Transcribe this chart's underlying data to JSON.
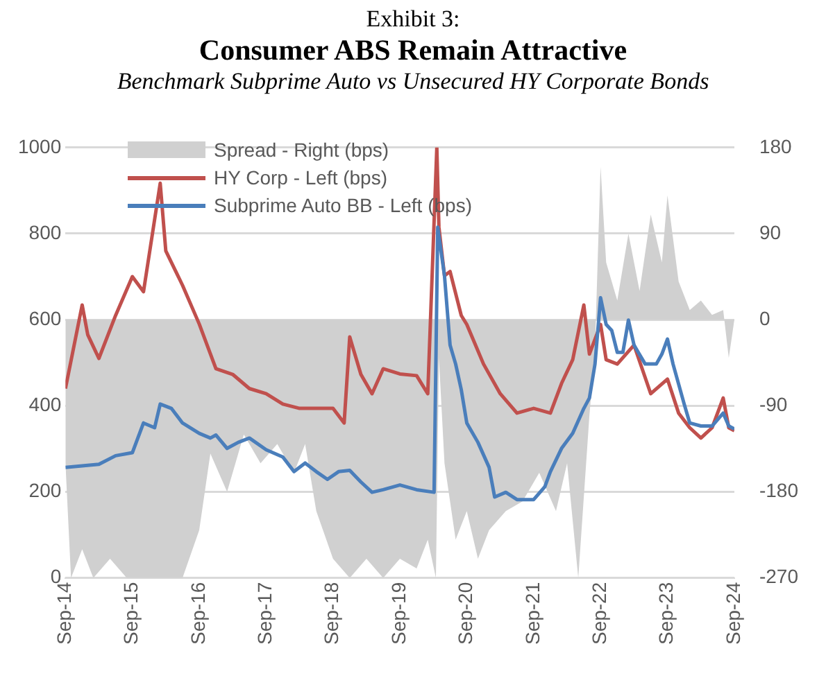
{
  "chart_data": {
    "type": "line",
    "title": "Consumer ABS Remain Attractive",
    "subtitle": "Benchmark Subprime Auto vs Unsecured HY Corporate Bonds",
    "annotations": [
      "Exhibit 3:"
    ],
    "xlim": [
      "2014-09",
      "2024-09"
    ],
    "xticks": [
      {
        "value": "2014-09",
        "label": "Sep-14"
      },
      {
        "value": "2015-09",
        "label": "Sep-15"
      },
      {
        "value": "2016-09",
        "label": "Sep-16"
      },
      {
        "value": "2017-09",
        "label": "Sep-17"
      },
      {
        "value": "2018-09",
        "label": "Sep-18"
      },
      {
        "value": "2019-09",
        "label": "Sep-19"
      },
      {
        "value": "2020-09",
        "label": "Sep-20"
      },
      {
        "value": "2021-09",
        "label": "Sep-21"
      },
      {
        "value": "2022-09",
        "label": "Sep-22"
      },
      {
        "value": "2023-09",
        "label": "Sep-23"
      },
      {
        "value": "2024-09",
        "label": "Sep-24"
      }
    ],
    "ylim": [
      0,
      1000
    ],
    "yticks": [
      0,
      200,
      400,
      600,
      800,
      1000
    ],
    "y2lim": [
      -270,
      180
    ],
    "y2ticks": [
      -270,
      -180,
      -90,
      0,
      90,
      180
    ],
    "grid": "y",
    "legend": "top left",
    "marker": "none",
    "series": [
      {
        "name": "Spread - Right (bps)",
        "type": "area",
        "axis": "y2",
        "color": "#d0d0d0",
        "x": [
          "2014-09",
          "2014-10",
          "2014-12",
          "2015-02",
          "2015-05",
          "2015-08",
          "2016-01",
          "2016-06",
          "2016-09",
          "2016-11",
          "2017-02",
          "2017-05",
          "2017-08",
          "2017-11",
          "2018-02",
          "2018-04",
          "2018-06",
          "2018-09",
          "2018-12",
          "2019-03",
          "2019-06",
          "2019-09",
          "2019-12",
          "2020-02",
          "2020-03-15",
          "2020-04",
          "2020-05",
          "2020-07",
          "2020-09",
          "2020-11",
          "2021-01",
          "2021-04",
          "2021-07",
          "2021-10",
          "2022-01",
          "2022-03",
          "2022-05",
          "2022-07",
          "2022-08",
          "2022-09",
          "2022-10",
          "2022-12",
          "2023-02",
          "2023-04",
          "2023-06",
          "2023-08",
          "2023-09",
          "2023-11",
          "2024-01",
          "2024-03",
          "2024-05",
          "2024-07",
          "2024-08",
          "2024-09"
        ],
        "values": [
          -150,
          -270,
          -240,
          -270,
          -250,
          -270,
          -270,
          -270,
          -220,
          -140,
          -180,
          -120,
          -150,
          -130,
          -160,
          -130,
          -200,
          -250,
          -270,
          -250,
          -270,
          -250,
          -260,
          -230,
          -270,
          -40,
          -150,
          -230,
          -200,
          -250,
          -220,
          -200,
          -190,
          -160,
          -200,
          -150,
          -270,
          -100,
          -30,
          160,
          60,
          20,
          90,
          30,
          110,
          60,
          130,
          40,
          10,
          20,
          5,
          10,
          -40,
          0
        ]
      },
      {
        "name": "HY Corp - Left (bps)",
        "color": "#c0504d",
        "x": [
          "2014-09",
          "2014-12",
          "2015-01",
          "2015-03",
          "2015-06",
          "2015-09",
          "2015-11",
          "2016-02",
          "2016-03",
          "2016-06",
          "2016-09",
          "2016-12",
          "2017-03",
          "2017-06",
          "2017-09",
          "2017-12",
          "2018-03",
          "2018-06",
          "2018-09",
          "2018-11",
          "2018-12",
          "2019-02",
          "2019-04",
          "2019-06",
          "2019-09",
          "2019-12",
          "2020-02",
          "2020-03-20",
          "2020-04",
          "2020-05",
          "2020-06",
          "2020-08",
          "2020-09",
          "2020-12",
          "2021-03",
          "2021-06",
          "2021-09",
          "2021-12",
          "2022-02",
          "2022-04",
          "2022-06",
          "2022-07",
          "2022-09",
          "2022-10",
          "2022-12",
          "2023-03",
          "2023-06",
          "2023-09",
          "2023-11",
          "2024-01",
          "2024-03",
          "2024-05",
          "2024-07",
          "2024-08",
          "2024-09"
        ],
        "values": [
          440,
          634,
          565,
          510,
          610,
          700,
          665,
          917,
          760,
          680,
          590,
          486,
          473,
          440,
          428,
          404,
          394,
          394,
          394,
          360,
          560,
          473,
          428,
          486,
          474,
          470,
          428,
          1000,
          815,
          702,
          712,
          610,
          589,
          497,
          428,
          383,
          394,
          383,
          452,
          507,
          634,
          520,
          589,
          507,
          497,
          541,
          428,
          462,
          383,
          349,
          325,
          349,
          418,
          349,
          342
        ]
      },
      {
        "name": "Subprime Auto BB - Left (bps)",
        "color": "#4a7ebb",
        "x": [
          "2014-09",
          "2015-03",
          "2015-06",
          "2015-09",
          "2015-11",
          "2016-01",
          "2016-02",
          "2016-04",
          "2016-06",
          "2016-09",
          "2016-11",
          "2016-12",
          "2017-02",
          "2017-04",
          "2017-06",
          "2017-09",
          "2017-12",
          "2018-02",
          "2018-04",
          "2018-06",
          "2018-08",
          "2018-10",
          "2018-12",
          "2019-02",
          "2019-04",
          "2019-06",
          "2019-09",
          "2019-12",
          "2020-03-05",
          "2020-03-25",
          "2020-04",
          "2020-05",
          "2020-06",
          "2020-07",
          "2020-08",
          "2020-09",
          "2020-11",
          "2021-01",
          "2021-02",
          "2021-04",
          "2021-06",
          "2021-09",
          "2021-11",
          "2021-12",
          "2022-02",
          "2022-04",
          "2022-06",
          "2022-07",
          "2022-08",
          "2022-09",
          "2022-10",
          "2022-11",
          "2022-12",
          "2023-01",
          "2023-02",
          "2023-03",
          "2023-05",
          "2023-07",
          "2023-08",
          "2023-09",
          "2023-10",
          "2023-12",
          "2024-01",
          "2024-03",
          "2024-05",
          "2024-07",
          "2024-08",
          "2024-09"
        ],
        "values": [
          257,
          264,
          284,
          291,
          360,
          349,
          404,
          394,
          360,
          336,
          325,
          332,
          301,
          315,
          325,
          298,
          281,
          247,
          267,
          247,
          229,
          247,
          250,
          223,
          199,
          205,
          216,
          205,
          199,
          815,
          795,
          702,
          541,
          497,
          438,
          360,
          315,
          257,
          188,
          199,
          182,
          182,
          212,
          247,
          301,
          336,
          394,
          418,
          497,
          651,
          589,
          575,
          524,
          524,
          599,
          541,
          497,
          497,
          520,
          555,
          497,
          404,
          360,
          353,
          353,
          383,
          353,
          346
        ]
      }
    ]
  }
}
